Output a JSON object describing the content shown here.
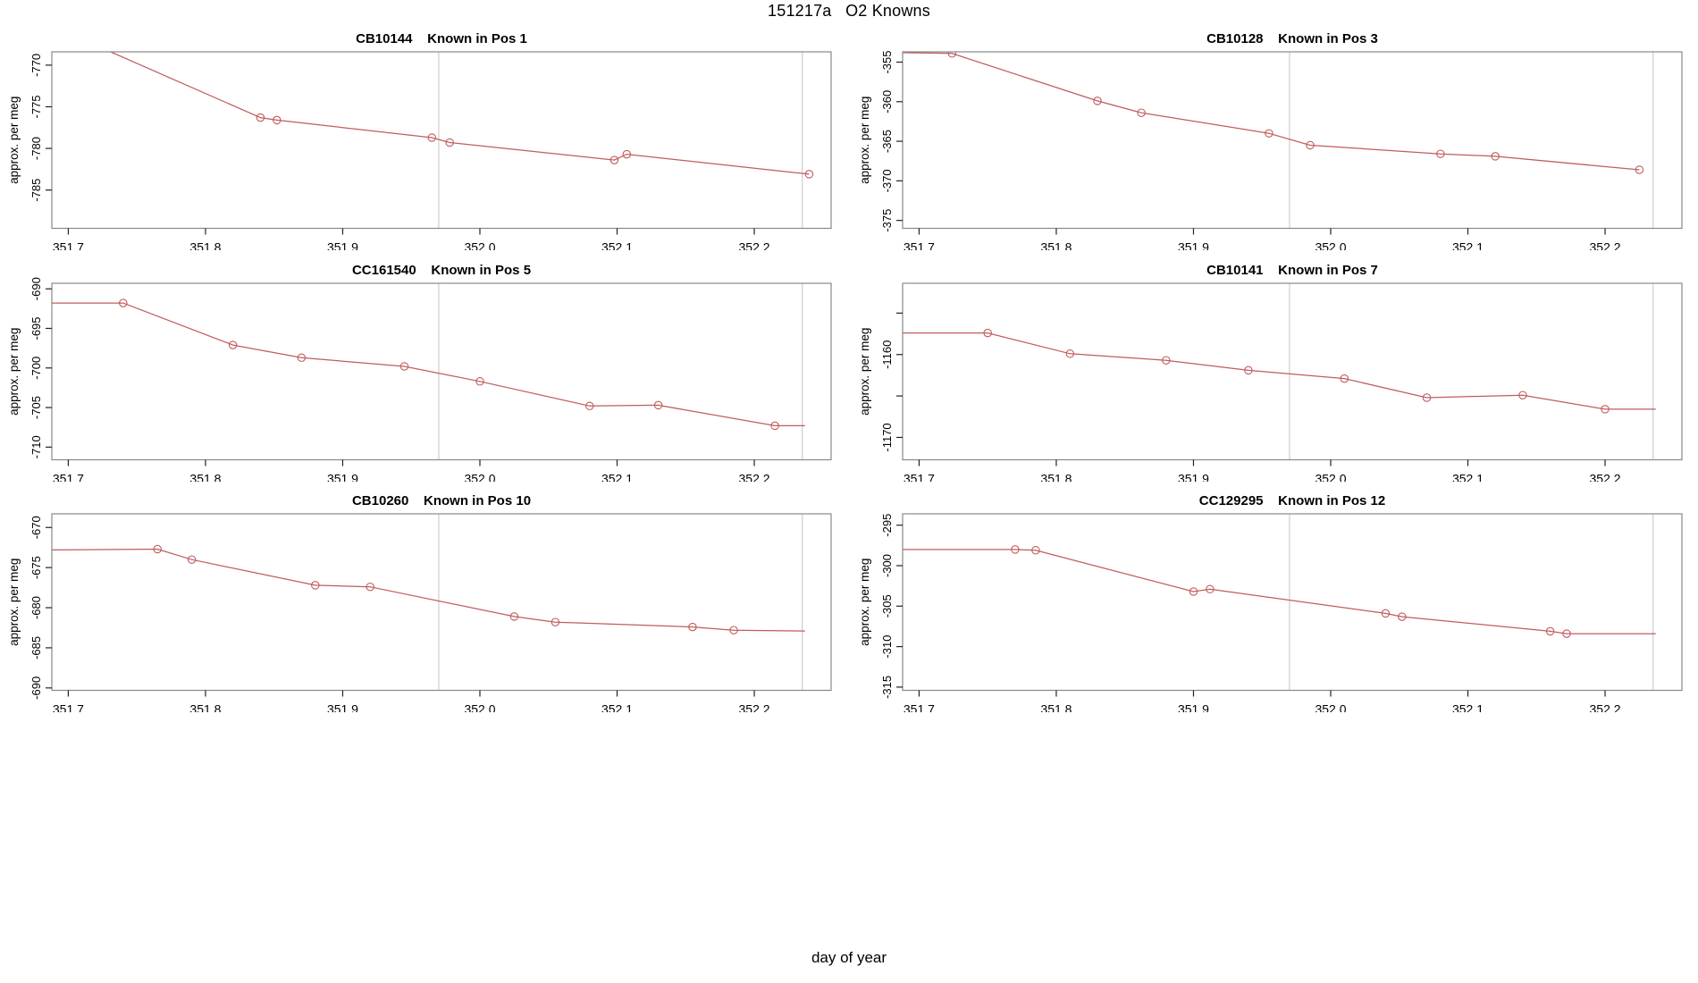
{
  "figure": {
    "title": "151217a   O2 Knowns",
    "xlabel": "day of year",
    "ylabel": "approx. per meg",
    "colors": {
      "line": "#C05C5C",
      "marker": "#C05C5C",
      "box": "#888888",
      "tick": "#222222",
      "text": "#000000",
      "reference_line": "#C9C9C9",
      "background": "#FFFFFF"
    },
    "x_axis": {
      "lim": [
        351.688,
        352.256
      ],
      "ticks": [
        351.7,
        351.8,
        351.9,
        352.0,
        352.1,
        352.2
      ],
      "tick_labels": [
        "351.7",
        "351.8",
        "351.9",
        "352.0",
        "352.1",
        "352.2"
      ]
    },
    "reference_lines_x": [
      351.97,
      352.235
    ],
    "grid": "off",
    "legend": "none"
  },
  "chart_data": [
    {
      "type": "line",
      "title": "CB10144    Known in Pos 1",
      "sample": "CB10144",
      "position_label": "Known in Pos 1",
      "ylim": [
        -789.6,
        -768.4
      ],
      "yticks": [
        {
          "v": -770,
          "label": "-770"
        },
        {
          "v": -775,
          "label": "-775"
        },
        {
          "v": -780,
          "label": "-780"
        },
        {
          "v": -785,
          "label": "-785"
        }
      ],
      "line": [
        [
          351.71,
          -766.9
        ],
        [
          351.84,
          -776.3
        ],
        [
          351.852,
          -776.6
        ],
        [
          351.965,
          -778.7
        ],
        [
          351.978,
          -779.3
        ],
        [
          352.098,
          -781.4
        ],
        [
          352.107,
          -780.7
        ],
        [
          352.24,
          -783.1
        ]
      ],
      "markers": [
        [
          351.84,
          -776.3
        ],
        [
          351.852,
          -776.6
        ],
        [
          351.965,
          -778.7
        ],
        [
          351.978,
          -779.3
        ],
        [
          352.098,
          -781.4
        ],
        [
          352.107,
          -780.7
        ],
        [
          352.24,
          -783.1
        ]
      ]
    },
    {
      "type": "line",
      "title": "CB10128    Known in Pos 3",
      "sample": "CB10128",
      "position_label": "Known in Pos 3",
      "ylim": [
        -376.0,
        -353.7
      ],
      "yticks": [
        {
          "v": -355,
          "label": "-355"
        },
        {
          "v": -360,
          "label": "-360"
        },
        {
          "v": -365,
          "label": "-365"
        },
        {
          "v": -370,
          "label": "-370"
        },
        {
          "v": -375,
          "label": "-375"
        }
      ],
      "line": [
        [
          351.688,
          -353.8
        ],
        [
          351.724,
          -353.9
        ],
        [
          351.83,
          -359.9
        ],
        [
          351.862,
          -361.4
        ],
        [
          351.955,
          -364.0
        ],
        [
          351.985,
          -365.5
        ],
        [
          352.08,
          -366.6
        ],
        [
          352.12,
          -366.9
        ],
        [
          352.225,
          -368.6
        ]
      ],
      "markers": [
        [
          351.724,
          -353.9
        ],
        [
          351.83,
          -359.9
        ],
        [
          351.862,
          -361.4
        ],
        [
          351.955,
          -364.0
        ],
        [
          351.985,
          -365.5
        ],
        [
          352.08,
          -366.6
        ],
        [
          352.12,
          -366.9
        ],
        [
          352.225,
          -368.6
        ]
      ]
    },
    {
      "type": "line",
      "title": "CC161540    Known in Pos 5",
      "sample": "CC161540",
      "position_label": "Known in Pos 5",
      "ylim": [
        -711.6,
        -689.3
      ],
      "yticks": [
        {
          "v": -690,
          "label": "-690"
        },
        {
          "v": -695,
          "label": "-695"
        },
        {
          "v": -700,
          "label": "-700"
        },
        {
          "v": -705,
          "label": "-705"
        },
        {
          "v": -710,
          "label": "-710"
        }
      ],
      "line": [
        [
          351.688,
          -691.8
        ],
        [
          351.74,
          -691.8
        ],
        [
          351.82,
          -697.1
        ],
        [
          351.87,
          -698.7
        ],
        [
          351.945,
          -699.8
        ],
        [
          352.0,
          -701.7
        ],
        [
          352.08,
          -704.8
        ],
        [
          352.13,
          -704.7
        ],
        [
          352.215,
          -707.3
        ],
        [
          352.237,
          -707.3
        ]
      ],
      "markers": [
        [
          351.74,
          -691.8
        ],
        [
          351.82,
          -697.1
        ],
        [
          351.87,
          -698.7
        ],
        [
          351.945,
          -699.8
        ],
        [
          352.0,
          -701.7
        ],
        [
          352.08,
          -704.8
        ],
        [
          352.13,
          -704.7
        ],
        [
          352.215,
          -707.3
        ]
      ]
    },
    {
      "type": "line",
      "title": "CB10141    Known in Pos 7",
      "sample": "CB10141",
      "position_label": "Known in Pos 7",
      "ylim": [
        -1172.7,
        -1151.4
      ],
      "yticks": [
        {
          "v": -1155,
          "label": ""
        },
        {
          "v": -1160,
          "label": "-1160"
        },
        {
          "v": -1165,
          "label": ""
        },
        {
          "v": -1170,
          "label": "-1170"
        }
      ],
      "line": [
        [
          351.688,
          -1157.4
        ],
        [
          351.75,
          -1157.4
        ],
        [
          351.81,
          -1159.9
        ],
        [
          351.88,
          -1160.7
        ],
        [
          351.94,
          -1161.9
        ],
        [
          352.01,
          -1162.9
        ],
        [
          352.07,
          -1165.2
        ],
        [
          352.14,
          -1164.9
        ],
        [
          352.2,
          -1166.6
        ],
        [
          352.237,
          -1166.6
        ]
      ],
      "markers": [
        [
          351.75,
          -1157.4
        ],
        [
          351.81,
          -1159.9
        ],
        [
          351.88,
          -1160.7
        ],
        [
          351.94,
          -1161.9
        ],
        [
          352.01,
          -1162.9
        ],
        [
          352.07,
          -1165.2
        ],
        [
          352.14,
          -1164.9
        ],
        [
          352.2,
          -1166.6
        ]
      ]
    },
    {
      "type": "line",
      "title": "CB10260    Known in Pos 10",
      "sample": "CB10260",
      "position_label": "Known in Pos 10",
      "ylim": [
        -690.3,
        -668.3
      ],
      "yticks": [
        {
          "v": -670,
          "label": "-670"
        },
        {
          "v": -675,
          "label": "-675"
        },
        {
          "v": -680,
          "label": "-680"
        },
        {
          "v": -685,
          "label": "-685"
        },
        {
          "v": -690,
          "label": "-690"
        }
      ],
      "line": [
        [
          351.688,
          -672.8
        ],
        [
          351.765,
          -672.7
        ],
        [
          351.79,
          -674.0
        ],
        [
          351.88,
          -677.2
        ],
        [
          351.92,
          -677.4
        ],
        [
          352.025,
          -681.1
        ],
        [
          352.055,
          -681.8
        ],
        [
          352.155,
          -682.4
        ],
        [
          352.185,
          -682.8
        ],
        [
          352.237,
          -682.9
        ]
      ],
      "markers": [
        [
          351.765,
          -672.7
        ],
        [
          351.79,
          -674.0
        ],
        [
          351.88,
          -677.2
        ],
        [
          351.92,
          -677.4
        ],
        [
          352.025,
          -681.1
        ],
        [
          352.055,
          -681.8
        ],
        [
          352.155,
          -682.4
        ],
        [
          352.185,
          -682.8
        ]
      ]
    },
    {
      "type": "line",
      "title": "CC129295    Known in Pos 12",
      "sample": "CC129295",
      "position_label": "Known in Pos 12",
      "ylim": [
        -315.4,
        -293.6
      ],
      "yticks": [
        {
          "v": -295,
          "label": "-295"
        },
        {
          "v": -300,
          "label": "-300"
        },
        {
          "v": -305,
          "label": "-305"
        },
        {
          "v": -310,
          "label": "-310"
        },
        {
          "v": -315,
          "label": "-315"
        }
      ],
      "line": [
        [
          351.688,
          -298.0
        ],
        [
          351.77,
          -298.0
        ],
        [
          351.785,
          -298.1
        ],
        [
          351.9,
          -303.2
        ],
        [
          351.912,
          -302.9
        ],
        [
          352.04,
          -305.9
        ],
        [
          352.052,
          -306.3
        ],
        [
          352.16,
          -308.1
        ],
        [
          352.172,
          -308.4
        ],
        [
          352.237,
          -308.4
        ]
      ],
      "markers": [
        [
          351.77,
          -298.0
        ],
        [
          351.785,
          -298.1
        ],
        [
          351.9,
          -303.2
        ],
        [
          351.912,
          -302.9
        ],
        [
          352.04,
          -305.9
        ],
        [
          352.052,
          -306.3
        ],
        [
          352.16,
          -308.1
        ],
        [
          352.172,
          -308.4
        ]
      ]
    }
  ]
}
